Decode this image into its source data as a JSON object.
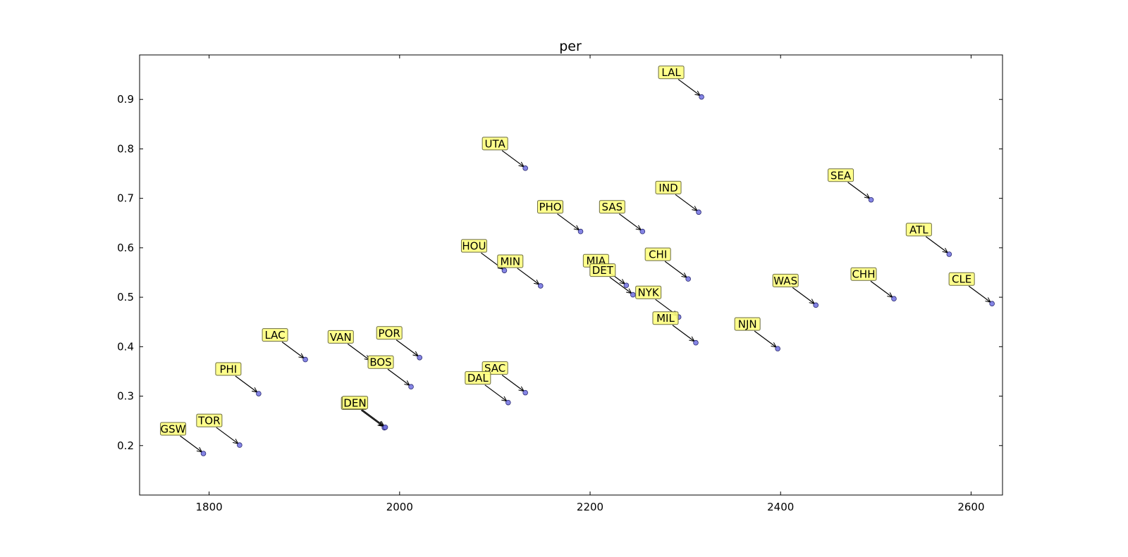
{
  "chart_data": {
    "type": "scatter",
    "title": "per",
    "xlabel": "",
    "ylabel": "",
    "xlim": [
      1727,
      2633
    ],
    "ylim": [
      0.1,
      0.99
    ],
    "xticks": [
      1800,
      2000,
      2200,
      2400,
      2600
    ],
    "yticks": [
      0.2,
      0.3,
      0.4,
      0.5,
      0.6,
      0.7,
      0.8,
      0.9
    ],
    "xtick_labels": [
      "1800",
      "2000",
      "2200",
      "2400",
      "2600"
    ],
    "ytick_labels": [
      "0.2",
      "0.3",
      "0.4",
      "0.5",
      "0.6",
      "0.7",
      "0.8",
      "0.9"
    ],
    "grid": false,
    "colors": {
      "point": "#7070e0",
      "point_edge": "#2a2a70",
      "label_box": "#ffff80",
      "label_edge": "#6b6b40",
      "arrow": "#000000"
    },
    "points": [
      {
        "label": "LAL",
        "x": 2317,
        "y": 0.905
      },
      {
        "label": "UTA",
        "x": 2132,
        "y": 0.761
      },
      {
        "label": "SEA",
        "x": 2495,
        "y": 0.697
      },
      {
        "label": "IND",
        "x": 2314,
        "y": 0.672
      },
      {
        "label": "PHO",
        "x": 2190,
        "y": 0.633
      },
      {
        "label": "SAS",
        "x": 2255,
        "y": 0.633
      },
      {
        "label": "ATL",
        "x": 2577,
        "y": 0.587
      },
      {
        "label": "HOU",
        "x": 2110,
        "y": 0.554
      },
      {
        "label": "MIN",
        "x": 2148,
        "y": 0.523
      },
      {
        "label": "MIA",
        "x": 2238,
        "y": 0.524
      },
      {
        "label": "DET",
        "x": 2245,
        "y": 0.505
      },
      {
        "label": "CHI",
        "x": 2303,
        "y": 0.537
      },
      {
        "label": "CHH",
        "x": 2519,
        "y": 0.497
      },
      {
        "label": "WAS",
        "x": 2437,
        "y": 0.484
      },
      {
        "label": "CLE",
        "x": 2622,
        "y": 0.487
      },
      {
        "label": "NYK",
        "x": 2293,
        "y": 0.46
      },
      {
        "label": "MIL",
        "x": 2311,
        "y": 0.408
      },
      {
        "label": "NJN",
        "x": 2397,
        "y": 0.396
      },
      {
        "label": "LAC",
        "x": 1901,
        "y": 0.374
      },
      {
        "label": "VAN",
        "x": 1970,
        "y": 0.37
      },
      {
        "label": "POR",
        "x": 2021,
        "y": 0.378
      },
      {
        "label": "BOS",
        "x": 2012,
        "y": 0.319
      },
      {
        "label": "PHI",
        "x": 1852,
        "y": 0.305
      },
      {
        "label": "SAC",
        "x": 2132,
        "y": 0.307
      },
      {
        "label": "DAL",
        "x": 2114,
        "y": 0.287
      },
      {
        "label": "DEN",
        "x": 1984,
        "y": 0.236
      },
      {
        "label": "DEN",
        "x": 1985,
        "y": 0.237
      },
      {
        "label": "TOR",
        "x": 1832,
        "y": 0.201
      },
      {
        "label": "GSW",
        "x": 1794,
        "y": 0.184
      }
    ]
  }
}
